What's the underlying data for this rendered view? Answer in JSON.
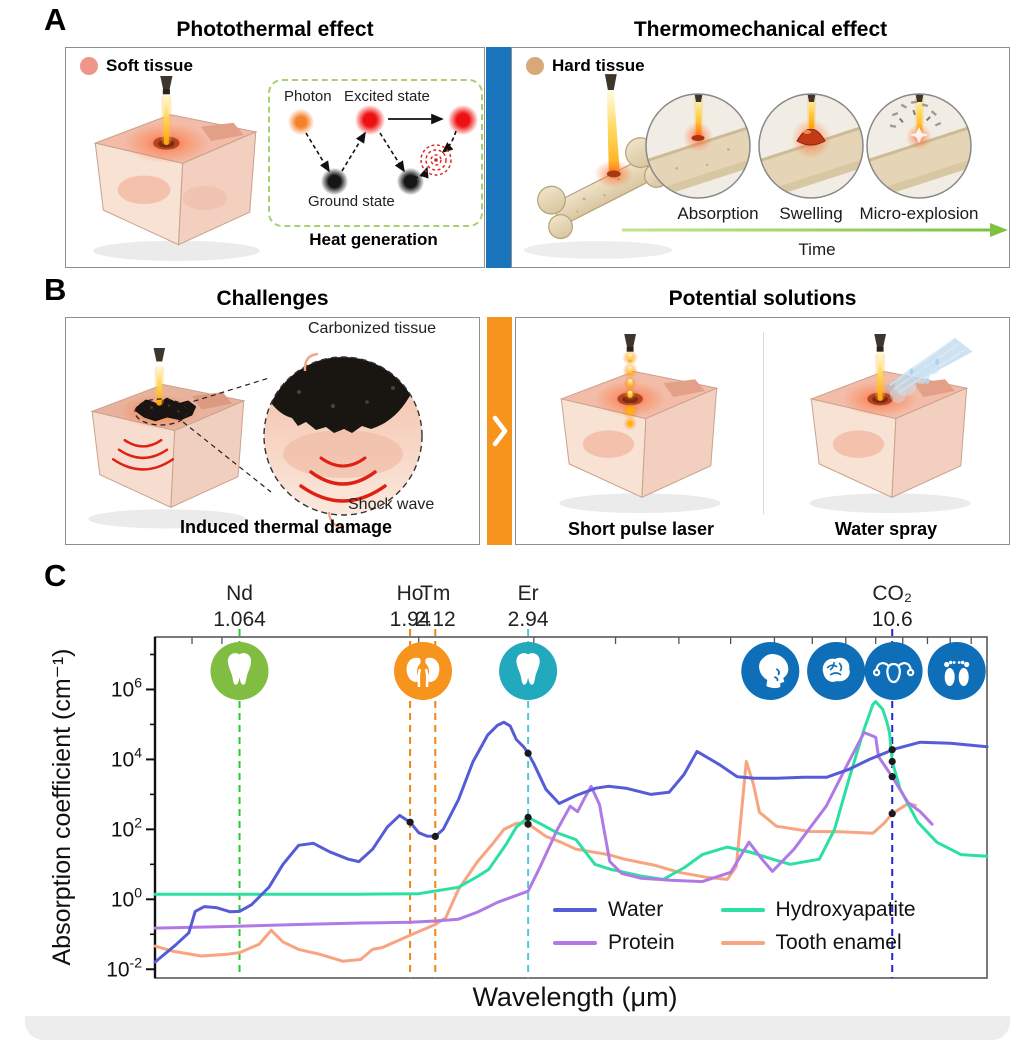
{
  "panel_a": {
    "label": "A",
    "left": {
      "title": "Photothermal effect",
      "tag": "Soft tissue",
      "inset": {
        "photon_label": "Photon",
        "excited_label": "Excited state",
        "ground_label": "Ground state",
        "caption": "Heat generation"
      }
    },
    "right": {
      "title": "Thermomechanical effect",
      "tag": "Hard tissue",
      "stages": [
        "Absorption",
        "Swelling",
        "Micro-explosion"
      ],
      "timeline": "Time"
    }
  },
  "panel_b": {
    "label": "B",
    "left": {
      "title": "Challenges",
      "top_annotation": "Carbonized tissue",
      "bottom_annotation": "Shock wave",
      "caption": "Induced thermal damage"
    },
    "right": {
      "title": "Potential solutions",
      "captions": [
        "Short pulse laser",
        "Water spray"
      ]
    }
  },
  "panel_c": {
    "label": "C",
    "chart_data": {
      "type": "line",
      "xlabel": "Wavelength (μm)",
      "ylabel": "Absorption coefficient (cm⁻¹)",
      "x_scale": "log",
      "y_scale": "log",
      "xlim": [
        0.79,
        14.8
      ],
      "ylim_log": [
        -2.25,
        7.5
      ],
      "y_tick_exponents_major": [
        -2,
        0,
        2,
        4,
        6
      ],
      "y_tick_exponents_minor": [
        -1,
        1,
        3,
        5,
        7
      ],
      "x_minor_ticks": [
        0.9,
        1,
        2,
        3,
        4,
        5,
        6,
        7,
        8,
        9,
        10,
        11,
        12,
        13,
        14
      ],
      "grid": false,
      "legend_position": "inside-bottom-right",
      "laser_lines": [
        {
          "label": "Nd",
          "wavelength_label": "1.064",
          "wavelength": 1.064,
          "color": "#29c832"
        },
        {
          "label": "Ho",
          "wavelength_label": "1.94",
          "wavelength": 1.94,
          "color": "#f08416"
        },
        {
          "label": "Tm",
          "wavelength_label": "2.12",
          "wavelength": 2.12,
          "color": "#f08416"
        },
        {
          "label": "Er",
          "wavelength_label": "2.94",
          "wavelength": 2.94,
          "color": "#4fc9d9"
        },
        {
          "label": "CO₂",
          "wavelength_label": "10.6",
          "wavelength": 10.6,
          "color": "#2424d2"
        }
      ],
      "icons": [
        {
          "name": "tooth-gum-icon",
          "glyph": "tooth",
          "wavelength": 1.064,
          "color": "#80bd40"
        },
        {
          "name": "kidneys-icon",
          "glyph": "kidneys",
          "wavelength": 2.03,
          "color": "#f7941e"
        },
        {
          "name": "tooth-icon",
          "glyph": "tooth",
          "wavelength": 2.94,
          "color": "#22a9bd"
        },
        {
          "name": "head-throat-icon",
          "glyph": "head",
          "wavelength": 6.9,
          "color": "#0e6fb8"
        },
        {
          "name": "brain-icon",
          "glyph": "brain",
          "wavelength": 8.7,
          "color": "#0e6fb8"
        },
        {
          "name": "uterus-icon",
          "glyph": "uterus",
          "wavelength": 10.65,
          "color": "#0e6fb8"
        },
        {
          "name": "feet-icon",
          "glyph": "feet",
          "wavelength": 13.3,
          "color": "#0e6fb8"
        }
      ],
      "series": [
        {
          "name": "Water",
          "color": "#565cd6",
          "points": [
            [
              0.79,
              0.016
            ],
            [
              0.85,
              0.05
            ],
            [
              0.89,
              0.11
            ],
            [
              0.91,
              0.45
            ],
            [
              0.94,
              0.62
            ],
            [
              0.98,
              0.58
            ],
            [
              1.03,
              0.44
            ],
            [
              1.064,
              0.45
            ],
            [
              1.11,
              0.7
            ],
            [
              1.18,
              2.2
            ],
            [
              1.24,
              10
            ],
            [
              1.31,
              35
            ],
            [
              1.38,
              40
            ],
            [
              1.46,
              23
            ],
            [
              1.56,
              14
            ],
            [
              1.62,
              12
            ],
            [
              1.7,
              27
            ],
            [
              1.79,
              115
            ],
            [
              1.87,
              250
            ],
            [
              1.94,
              160
            ],
            [
              2.0,
              80
            ],
            [
              2.06,
              64
            ],
            [
              2.12,
              63
            ],
            [
              2.18,
              100
            ],
            [
              2.3,
              700
            ],
            [
              2.42,
              8500
            ],
            [
              2.55,
              50000
            ],
            [
              2.64,
              95000
            ],
            [
              2.7,
              115000
            ],
            [
              2.76,
              90000
            ],
            [
              2.82,
              37000
            ],
            [
              2.9,
              22000
            ],
            [
              2.94,
              15000
            ],
            [
              3.0,
              7500
            ],
            [
              3.13,
              1400
            ],
            [
              3.28,
              550
            ],
            [
              3.48,
              930
            ],
            [
              3.73,
              1500
            ],
            [
              3.9,
              1700
            ],
            [
              4.15,
              1500
            ],
            [
              4.53,
              1000
            ],
            [
              4.83,
              1150
            ],
            [
              5.09,
              3700
            ],
            [
              5.33,
              17000
            ],
            [
              5.76,
              7200
            ],
            [
              6.14,
              3200
            ],
            [
              6.52,
              2900
            ],
            [
              7.05,
              2900
            ],
            [
              7.76,
              3100
            ],
            [
              8.42,
              3100
            ],
            [
              9.08,
              5100
            ],
            [
              9.78,
              10000
            ],
            [
              10.4,
              16000
            ],
            [
              10.6,
              19000
            ],
            [
              11.7,
              31000
            ],
            [
              13.0,
              29000
            ],
            [
              14.8,
              23000
            ]
          ]
        },
        {
          "name": "Protein",
          "color": "#b07ae6",
          "points": [
            [
              0.79,
              0.15
            ],
            [
              0.93,
              0.16
            ],
            [
              1.06,
              0.17
            ],
            [
              1.31,
              0.19
            ],
            [
              1.63,
              0.21
            ],
            [
              1.94,
              0.22
            ],
            [
              2.12,
              0.24
            ],
            [
              2.3,
              0.27
            ],
            [
              2.46,
              0.43
            ],
            [
              2.64,
              0.82
            ],
            [
              2.94,
              1.7
            ],
            [
              3.07,
              8.8
            ],
            [
              3.26,
              100
            ],
            [
              3.41,
              460
            ],
            [
              3.5,
              320
            ],
            [
              3.58,
              730
            ],
            [
              3.67,
              1700
            ],
            [
              3.78,
              510
            ],
            [
              3.92,
              12
            ],
            [
              4.09,
              5.5
            ],
            [
              4.38,
              4
            ],
            [
              4.86,
              3.5
            ],
            [
              5.43,
              3.2
            ],
            [
              6.0,
              5.9
            ],
            [
              6.4,
              43
            ],
            [
              6.7,
              14
            ],
            [
              6.95,
              6.3
            ],
            [
              7.5,
              27
            ],
            [
              8.4,
              460
            ],
            [
              9.1,
              8700
            ],
            [
              9.6,
              59000
            ],
            [
              10.0,
              43000
            ],
            [
              10.1,
              12000
            ],
            [
              10.6,
              3200
            ],
            [
              11.2,
              590
            ],
            [
              11.7,
              320
            ],
            [
              12.2,
              140
            ]
          ]
        },
        {
          "name": "Hydroxyapatite",
          "color": "#2be0a2",
          "points": [
            [
              0.79,
              1.4
            ],
            [
              1.2,
              1.4
            ],
            [
              1.6,
              1.4
            ],
            [
              2.0,
              1.45
            ],
            [
              2.3,
              2.2
            ],
            [
              2.46,
              4.5
            ],
            [
              2.56,
              7.2
            ],
            [
              2.72,
              37
            ],
            [
              2.82,
              115
            ],
            [
              2.94,
              220
            ],
            [
              3.08,
              140
            ],
            [
              3.25,
              81
            ],
            [
              3.48,
              51
            ],
            [
              3.72,
              10
            ],
            [
              3.93,
              7.2
            ],
            [
              4.38,
              4.6
            ],
            [
              4.73,
              3.7
            ],
            [
              5.1,
              8.1
            ],
            [
              5.43,
              19
            ],
            [
              5.93,
              31
            ],
            [
              6.45,
              22
            ],
            [
              6.95,
              14
            ],
            [
              7.4,
              10
            ],
            [
              8.2,
              14
            ],
            [
              8.65,
              100
            ],
            [
              9.1,
              2700
            ],
            [
              9.6,
              73000
            ],
            [
              9.9,
              370000
            ],
            [
              10.0,
              450000
            ],
            [
              10.25,
              270000
            ],
            [
              10.4,
              120000
            ],
            [
              10.5,
              59000
            ],
            [
              10.6,
              8700
            ],
            [
              10.9,
              1400
            ],
            [
              11.6,
              160
            ],
            [
              12.4,
              43
            ],
            [
              13.5,
              19
            ],
            [
              14.8,
              17
            ]
          ]
        },
        {
          "name": "Tooth enamel",
          "color": "#f7a480",
          "points": [
            [
              0.79,
              0.046
            ],
            [
              0.84,
              0.033
            ],
            [
              0.93,
              0.024
            ],
            [
              1.02,
              0.027
            ],
            [
              1.064,
              0.03
            ],
            [
              1.14,
              0.052
            ],
            [
              1.19,
              0.13
            ],
            [
              1.24,
              0.06
            ],
            [
              1.31,
              0.037
            ],
            [
              1.41,
              0.027
            ],
            [
              1.53,
              0.017
            ],
            [
              1.63,
              0.019
            ],
            [
              1.7,
              0.037
            ],
            [
              1.76,
              0.042
            ],
            [
              1.88,
              0.072
            ],
            [
              1.94,
              0.094
            ],
            [
              2.12,
              0.19
            ],
            [
              2.2,
              0.3
            ],
            [
              2.3,
              1.9
            ],
            [
              2.46,
              12
            ],
            [
              2.59,
              37
            ],
            [
              2.7,
              100
            ],
            [
              2.82,
              148
            ],
            [
              2.9,
              152
            ],
            [
              2.94,
              140
            ],
            [
              3.0,
              110
            ],
            [
              3.13,
              63
            ],
            [
              3.3,
              43
            ],
            [
              3.48,
              27
            ],
            [
              3.9,
              19
            ],
            [
              4.13,
              14
            ],
            [
              4.6,
              9.3
            ],
            [
              5.0,
              5.9
            ],
            [
              5.5,
              4.3
            ],
            [
              5.93,
              3.7
            ],
            [
              6.12,
              8.7
            ],
            [
              6.34,
              8700
            ],
            [
              6.5,
              2000
            ],
            [
              6.64,
              310
            ],
            [
              7.05,
              123
            ],
            [
              7.93,
              87
            ],
            [
              8.83,
              85
            ],
            [
              9.9,
              77
            ],
            [
              10.3,
              150
            ],
            [
              10.6,
              280
            ],
            [
              11.2,
              540
            ],
            [
              11.5,
              490
            ]
          ]
        }
      ],
      "markers": [
        [
          1.94,
          160
        ],
        [
          2.12,
          63
        ],
        [
          2.94,
          15000
        ],
        [
          2.94,
          220
        ],
        [
          2.94,
          140
        ],
        [
          10.6,
          19000
        ],
        [
          10.6,
          8700
        ],
        [
          10.6,
          3200
        ],
        [
          10.6,
          280
        ]
      ]
    }
  }
}
